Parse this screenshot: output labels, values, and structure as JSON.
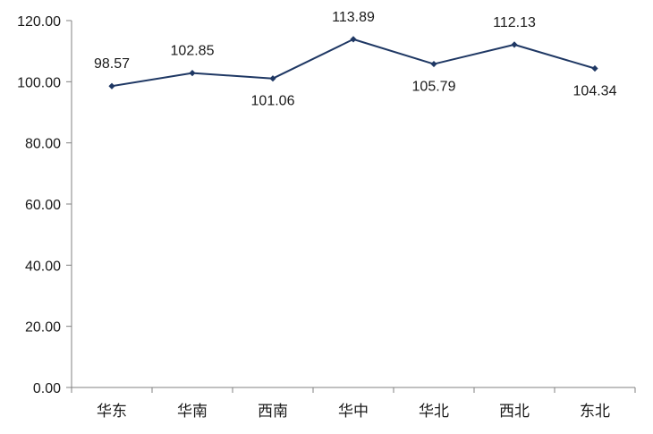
{
  "chart_data": {
    "type": "line",
    "title": "",
    "xlabel": "",
    "ylabel": "",
    "categories": [
      "华东",
      "华南",
      "西南",
      "华中",
      "华北",
      "西北",
      "东北"
    ],
    "series": [
      {
        "values": [
          98.57,
          102.85,
          101.06,
          113.89,
          105.79,
          112.13,
          104.34
        ]
      }
    ],
    "data_labels": [
      "98.57",
      "102.85",
      "101.06",
      "113.89",
      "105.79",
      "112.13",
      "104.34"
    ],
    "ylim": [
      0,
      120
    ],
    "y_ticks": [
      "0.00",
      "20.00",
      "40.00",
      "60.00",
      "80.00",
      "100.00",
      "120.00"
    ],
    "grid": false,
    "legend": "none",
    "colors": {
      "line": "#1f3864",
      "marker": "#1f3864",
      "axis": "#808080",
      "text": "#1a1a1a"
    }
  }
}
